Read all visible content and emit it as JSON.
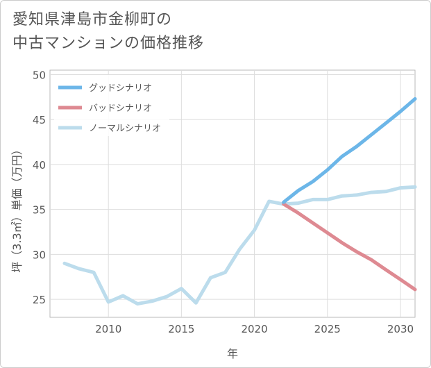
{
  "title_line1": "愛知県津島市金柳町の",
  "title_line2": "中古マンションの価格推移",
  "chart_data": {
    "type": "line",
    "xlabel": "年",
    "ylabel": "坪（3.3㎡）単価（万円）",
    "xlim": [
      2006,
      2031
    ],
    "ylim": [
      23,
      50.5
    ],
    "xticks": [
      2010,
      2015,
      2020,
      2025,
      2030
    ],
    "yticks": [
      25,
      30,
      35,
      40,
      45,
      50
    ],
    "grid": true,
    "legend_position": "top-left",
    "series": [
      {
        "name": "グッドシナリオ",
        "color": "#6cb6e8",
        "x": [
          2022,
          2023,
          2024,
          2025,
          2026,
          2027,
          2028,
          2029,
          2030,
          2031
        ],
        "y": [
          35.8,
          37.1,
          38.1,
          39.4,
          40.9,
          42.0,
          43.3,
          44.6,
          45.9,
          47.3
        ]
      },
      {
        "name": "バッドシナリオ",
        "color": "#de8a92",
        "x": [
          2022,
          2023,
          2024,
          2025,
          2026,
          2027,
          2028,
          2029,
          2030,
          2031
        ],
        "y": [
          35.6,
          34.6,
          33.5,
          32.4,
          31.3,
          30.3,
          29.4,
          28.3,
          27.2,
          26.1
        ]
      },
      {
        "name": "ノーマルシナリオ",
        "color": "#bcdcec",
        "x": [
          2007,
          2008,
          2009,
          2010,
          2011,
          2012,
          2013,
          2014,
          2015,
          2016,
          2017,
          2018,
          2019,
          2020,
          2021,
          2022,
          2023,
          2024,
          2025,
          2026,
          2027,
          2028,
          2029,
          2030,
          2031
        ],
        "y": [
          29.0,
          28.4,
          28.0,
          24.7,
          25.4,
          24.5,
          24.8,
          25.3,
          26.2,
          24.6,
          27.4,
          28.0,
          30.6,
          32.7,
          35.9,
          35.6,
          35.7,
          36.1,
          36.1,
          36.5,
          36.6,
          36.9,
          37.0,
          37.4,
          37.5
        ]
      }
    ]
  }
}
